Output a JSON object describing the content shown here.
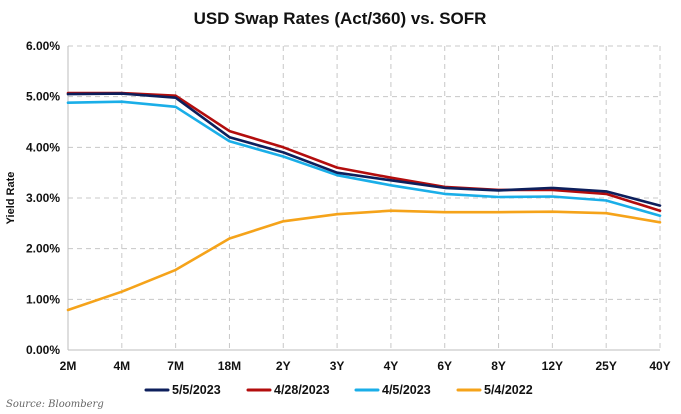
{
  "chart_data": {
    "type": "line",
    "title": "USD Swap Rates (Act/360) vs. SOFR",
    "ylabel": "Yield Rate",
    "xlabel": "",
    "source": "Source: Bloomberg",
    "categories": [
      "2M",
      "4M",
      "7M",
      "18M",
      "2Y",
      "3Y",
      "4Y",
      "6Y",
      "8Y",
      "12Y",
      "25Y",
      "40Y"
    ],
    "y_ticks": [
      "0.00%",
      "1.00%",
      "2.00%",
      "3.00%",
      "4.00%",
      "5.00%",
      "6.00%"
    ],
    "ylim": [
      0,
      6
    ],
    "grid": true,
    "legend_position": "bottom",
    "series": [
      {
        "name": "5/5/2023",
        "color": "#0d1f5c",
        "values": [
          5.05,
          5.06,
          4.98,
          4.2,
          3.9,
          3.5,
          3.35,
          3.2,
          3.15,
          3.2,
          3.13,
          2.85
        ]
      },
      {
        "name": "4/28/2023",
        "color": "#b30d0d",
        "values": [
          5.07,
          5.07,
          5.02,
          4.32,
          4.0,
          3.6,
          3.4,
          3.22,
          3.16,
          3.16,
          3.08,
          2.75
        ]
      },
      {
        "name": "4/5/2023",
        "color": "#1aaee8",
        "values": [
          4.88,
          4.9,
          4.8,
          4.12,
          3.82,
          3.45,
          3.25,
          3.08,
          3.02,
          3.03,
          2.95,
          2.65
        ]
      },
      {
        "name": "5/4/2022",
        "color": "#f5a31a",
        "values": [
          0.79,
          1.15,
          1.58,
          2.2,
          2.54,
          2.68,
          2.75,
          2.72,
          2.72,
          2.73,
          2.7,
          2.52
        ]
      }
    ]
  }
}
